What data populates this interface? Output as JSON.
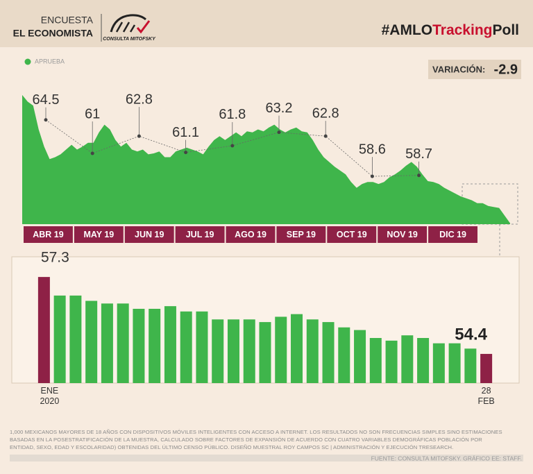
{
  "header": {
    "line1": "ENCUESTA",
    "line2": "EL ECONOMISTA",
    "logo_text": "CONSULTA MITOFSKY",
    "hashtag": [
      "#AMLO",
      "Tracking",
      "Poll"
    ]
  },
  "variation": {
    "label": "VARIACIÓN:",
    "value": -2.9
  },
  "chart_data": [
    {
      "type": "area",
      "series": [
        {
          "name": "APRUEBA",
          "color": "#3fb54b",
          "values": [
            67.1,
            66.4,
            66.0,
            63.5,
            61.7,
            60.4,
            60.6,
            60.9,
            61.4,
            61.9,
            61.4,
            61.7,
            62.1,
            62.1,
            63.2,
            64.0,
            63.5,
            62.4,
            61.7,
            62.1,
            61.4,
            61.2,
            61.4,
            60.9,
            61.0,
            61.2,
            60.6,
            60.6,
            61.2,
            61.4,
            61.6,
            61.4,
            61.2,
            60.9,
            61.7,
            62.4,
            62.8,
            62.4,
            62.8,
            63.2,
            62.8,
            63.3,
            63.2,
            63.5,
            63.3,
            63.7,
            64.0,
            63.5,
            63.2,
            63.5,
            63.7,
            63.3,
            63.2,
            62.4,
            61.4,
            60.6,
            60.1,
            59.6,
            59.2,
            58.8,
            58.0,
            57.4,
            57.8,
            58.0,
            58.0,
            57.8,
            58.0,
            58.5,
            58.8,
            59.2,
            59.7,
            60.1,
            59.6,
            58.8,
            58.1,
            58.0,
            57.8,
            57.4,
            57.1,
            56.8,
            56.5,
            56.3,
            56.1,
            55.8,
            55.8,
            55.5,
            55.4,
            55.3,
            54.5,
            53.7
          ]
        }
      ],
      "ylim": [
        53.6,
        67.6
      ],
      "annotation_values": [
        64.5,
        61.0,
        62.8,
        61.1,
        61.8,
        63.2,
        62.8,
        58.6,
        58.7
      ],
      "month_labels": [
        "ABR 19",
        "MAY 19",
        "JUN 19",
        "JUL 19",
        "AGO 19",
        "SEP 19",
        "OCT 19",
        "NOV 19",
        "DIC 19"
      ],
      "label_color": "#8e2146"
    },
    {
      "type": "bar",
      "categories": [
        "ENE 2020",
        null,
        null,
        null,
        null,
        null,
        null,
        null,
        null,
        null,
        null,
        null,
        null,
        null,
        null,
        null,
        null,
        null,
        null,
        null,
        null,
        null,
        null,
        null,
        null,
        null,
        null,
        null,
        "28 FEB"
      ],
      "values": [
        57.3,
        56.6,
        56.6,
        56.4,
        56.3,
        56.3,
        56.1,
        56.1,
        56.2,
        56.0,
        56.0,
        55.7,
        55.7,
        55.7,
        55.6,
        55.8,
        55.9,
        55.7,
        55.6,
        55.4,
        55.3,
        55.0,
        54.9,
        55.1,
        55.0,
        54.8,
        54.8,
        54.6,
        54.4
      ],
      "value_labels": [
        "57.3",
        null,
        null,
        null,
        null,
        null,
        null,
        null,
        null,
        null,
        null,
        null,
        null,
        null,
        null,
        null,
        null,
        null,
        null,
        null,
        null,
        null,
        null,
        null,
        null,
        null,
        null,
        null,
        "54.4"
      ],
      "colors": [
        "#8e2146",
        "#3fb54b",
        "#3fb54b",
        "#3fb54b",
        "#3fb54b",
        "#3fb54b",
        "#3fb54b",
        "#3fb54b",
        "#3fb54b",
        "#3fb54b",
        "#3fb54b",
        "#3fb54b",
        "#3fb54b",
        "#3fb54b",
        "#3fb54b",
        "#3fb54b",
        "#3fb54b",
        "#3fb54b",
        "#3fb54b",
        "#3fb54b",
        "#3fb54b",
        "#3fb54b",
        "#3fb54b",
        "#3fb54b",
        "#3fb54b",
        "#3fb54b",
        "#3fb54b",
        "#3fb54b",
        "#8e2146"
      ],
      "ylim": [
        53.3,
        57.8
      ]
    }
  ],
  "footnote": "1,000 MEXICANOS MAYORES DE 18 AÑOS CON DISPOSITIVOS MÓVILES INTELIGENTES CON ACCESO A INTERNET. LOS RESULTADOS NO SON FRECUENCIAS SIMPLES SINO ESTIMACIONES BASADAS EN LA POSESTRATIFICACIÓN DE LA MUESTRA, CALCULADO SOBRE FACTORES DE EXPANSIÓN DE ACUERDO CON CUATRO VARIABLES DEMOGRÁFICAS POBLACIÓN POR ENTIDAD, SEXO, EDAD Y ESCOLARIDAD) OBTENIDAS DEL ÚLTIMO CENSO PÚBLICO. DISEÑO MUESTRAL ROY CAMPOS SC | ADMINISTRACIÓN Y EJECUCIÓN TRESEARCH.",
  "source": "FUENTE: CONSULTA MITOFSKY. GRÁFICO EE: STAFF."
}
